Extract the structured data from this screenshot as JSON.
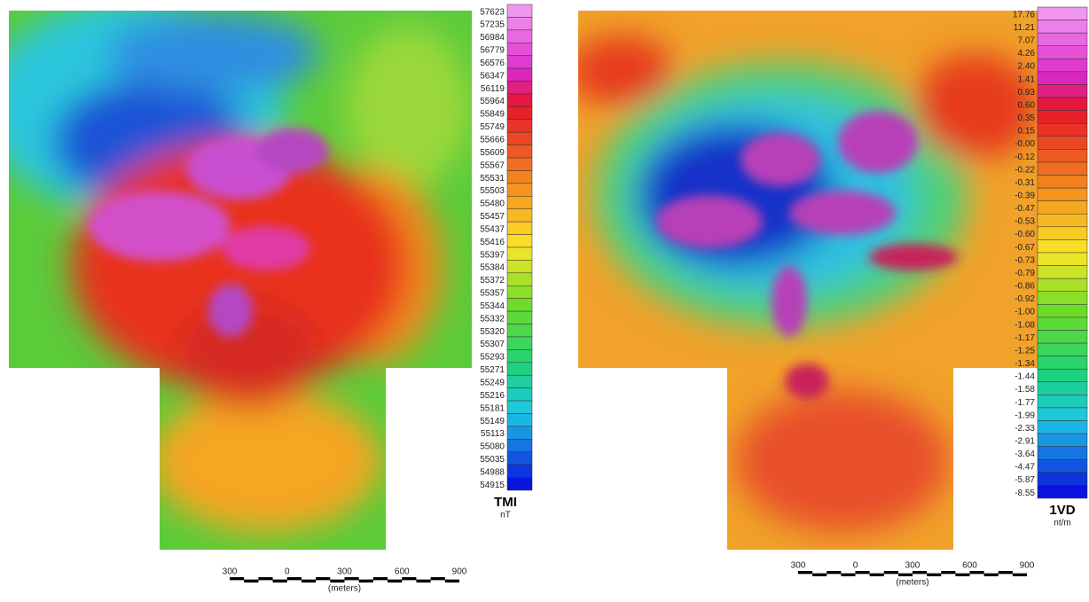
{
  "left_panel": {
    "legend": {
      "labels": [
        "57623",
        "57235",
        "56984",
        "56779",
        "56576",
        "56347",
        "56119",
        "55964",
        "55849",
        "55749",
        "55666",
        "55609",
        "55567",
        "55531",
        "55503",
        "55480",
        "55457",
        "55437",
        "55416",
        "55397",
        "55384",
        "55372",
        "55357",
        "55344",
        "55332",
        "55320",
        "55307",
        "55293",
        "55271",
        "55249",
        "55216",
        "55181",
        "55149",
        "55113",
        "55080",
        "55035",
        "54988",
        "54915"
      ],
      "title": "TMI",
      "unit": "nT"
    },
    "scale_bar": {
      "ticks": [
        "300",
        "0",
        "300",
        "600",
        "900"
      ],
      "unit_label": "(meters)"
    }
  },
  "right_panel": {
    "legend": {
      "labels": [
        "17.76",
        "11.21",
        "7.07",
        "4.26",
        "2.40",
        "1.41",
        "0.93",
        "0.60",
        "0.35",
        "0.15",
        "-0.00",
        "-0.12",
        "-0.22",
        "-0.31",
        "-0.39",
        "-0.47",
        "-0.53",
        "-0.60",
        "-0.67",
        "-0.73",
        "-0.79",
        "-0.86",
        "-0.92",
        "-1.00",
        "-1.08",
        "-1.17",
        "-1.25",
        "-1.34",
        "-1.44",
        "-1.58",
        "-1.77",
        "-1.99",
        "-2.33",
        "-2.91",
        "-3.64",
        "-4.47",
        "-5.87",
        "-8.55"
      ],
      "title": "1VD",
      "unit": "nt/m"
    },
    "scale_bar": {
      "ticks": [
        "300",
        "0",
        "300",
        "600",
        "900"
      ],
      "unit_label": "(meters)"
    }
  }
}
